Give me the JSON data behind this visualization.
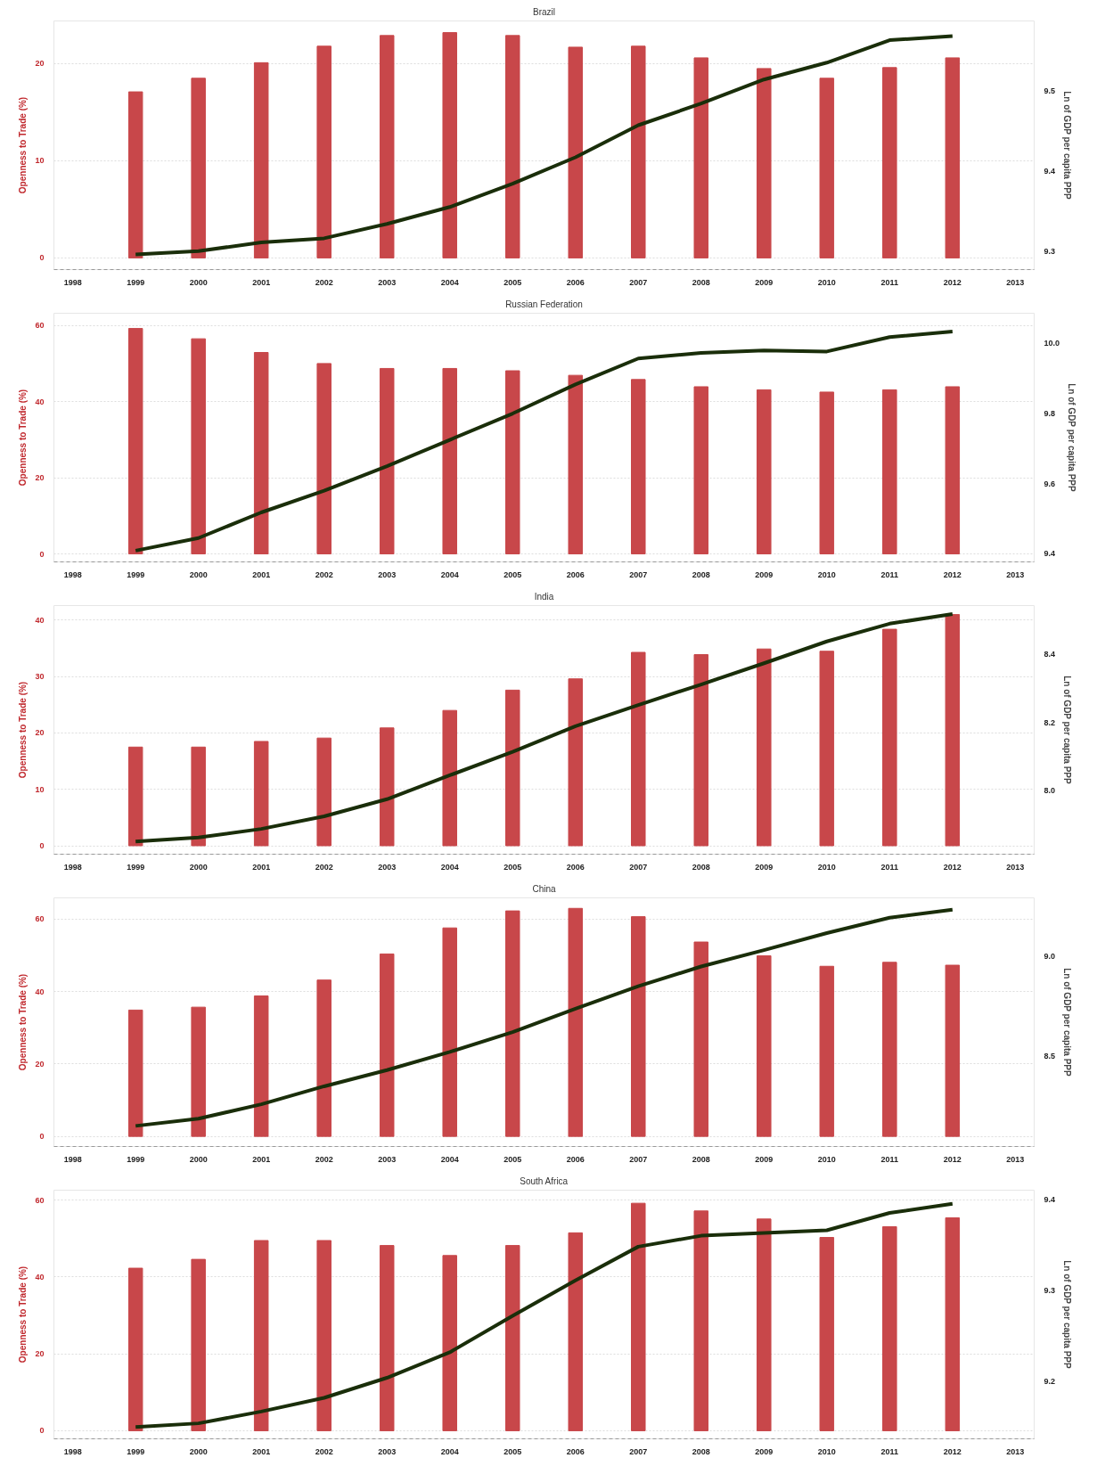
{
  "chart_data": [
    {
      "type": "bar",
      "title": "Brazil",
      "ylabel": "Openness to Trade (%)",
      "y2label": "Ln of GDP per capita PPP",
      "x": [
        1999,
        2000,
        2001,
        2002,
        2003,
        2004,
        2005,
        2006,
        2007,
        2008,
        2009,
        2010,
        2011,
        2012
      ],
      "xlim": [
        1997.7,
        2013.3
      ],
      "xticks": [
        1998,
        1999,
        2000,
        2001,
        2002,
        2003,
        2004,
        2005,
        2006,
        2007,
        2008,
        2009,
        2010,
        2011,
        2012,
        2013
      ],
      "ylim": [
        -1.2,
        24.4
      ],
      "yticks": [
        0,
        10,
        20
      ],
      "y2lim": [
        9.277,
        9.587
      ],
      "y2ticks": [
        9.3,
        9.4,
        9.5
      ],
      "grid": "y",
      "series": [
        {
          "color": "#c8474a",
          "values": [
            17.1,
            18.5,
            20.1,
            21.8,
            22.9,
            23.2,
            22.9,
            21.7,
            21.8,
            20.6,
            19.5,
            18.5,
            19.6,
            20.6
          ]
        },
        {
          "type": "line",
          "axis": "y2",
          "color": "#1a2e0a",
          "values": [
            9.296,
            9.3,
            9.311,
            9.316,
            9.334,
            9.355,
            9.384,
            9.417,
            9.457,
            9.484,
            9.514,
            9.535,
            9.563,
            9.568
          ]
        }
      ]
    },
    {
      "type": "bar",
      "title": "Russian Federation",
      "ylabel": "Openness to Trade (%)",
      "y2label": "Ln of GDP per capita PPP",
      "x": [
        1999,
        2000,
        2001,
        2002,
        2003,
        2004,
        2005,
        2006,
        2007,
        2008,
        2009,
        2010,
        2011,
        2012
      ],
      "xlim": [
        1997.7,
        2013.3
      ],
      "xticks": [
        1998,
        1999,
        2000,
        2001,
        2002,
        2003,
        2004,
        2005,
        2006,
        2007,
        2008,
        2009,
        2010,
        2011,
        2012,
        2013
      ],
      "ylim": [
        -2.1,
        63.2
      ],
      "yticks": [
        0,
        20,
        40,
        60
      ],
      "y2lim": [
        9.377,
        10.086
      ],
      "y2ticks": [
        {
          "value": 9.4,
          "label": "9.4"
        },
        {
          "value": 9.6,
          "label": "9.6"
        },
        {
          "value": 9.8,
          "label": "9.8"
        },
        {
          "value": 10.0,
          "label": "10.0"
        }
      ],
      "grid": "y",
      "series": [
        {
          "color": "#c8474a",
          "values": [
            59.2,
            56.5,
            52.9,
            50.0,
            48.7,
            48.7,
            48.1,
            46.9,
            45.8,
            43.9,
            43.1,
            42.5,
            43.1,
            43.9
          ]
        },
        {
          "type": "line",
          "axis": "y2",
          "color": "#1a2e0a",
          "values": [
            9.409,
            9.445,
            9.518,
            9.58,
            9.65,
            9.725,
            9.8,
            9.883,
            9.957,
            9.973,
            9.98,
            9.977,
            10.018,
            10.034
          ]
        }
      ]
    },
    {
      "type": "bar",
      "title": "India",
      "ylabel": "Openness to Trade (%)",
      "y2label": "Ln of GDP per capita PPP",
      "x": [
        1999,
        2000,
        2001,
        2002,
        2003,
        2004,
        2005,
        2006,
        2007,
        2008,
        2009,
        2010,
        2011,
        2012
      ],
      "xlim": [
        1997.7,
        2013.3
      ],
      "xticks": [
        1998,
        1999,
        2000,
        2001,
        2002,
        2003,
        2004,
        2005,
        2006,
        2007,
        2008,
        2009,
        2010,
        2011,
        2012,
        2013
      ],
      "ylim": [
        -1.5,
        42.6
      ],
      "yticks": [
        0,
        10,
        20,
        30,
        40
      ],
      "y2lim": [
        7.814,
        8.542
      ],
      "y2ticks": [
        {
          "value": 8.0,
          "label": "8.0"
        },
        8.2,
        8.4
      ],
      "grid": "y",
      "series": [
        {
          "color": "#c8474a",
          "values": [
            17.5,
            17.5,
            18.5,
            19.1,
            20.9,
            24.0,
            27.6,
            29.6,
            34.3,
            33.9,
            34.9,
            34.5,
            38.4,
            41.0
          ]
        },
        {
          "type": "line",
          "axis": "y2",
          "color": "#1a2e0a",
          "values": [
            7.851,
            7.863,
            7.888,
            7.925,
            7.975,
            8.045,
            8.114,
            8.189,
            8.251,
            8.311,
            8.373,
            8.437,
            8.489,
            8.517
          ]
        }
      ]
    },
    {
      "type": "bar",
      "title": "China",
      "ylabel": "Openness to Trade (%)",
      "y2label": "Ln of GDP per capita PPP",
      "x": [
        1999,
        2000,
        2001,
        2002,
        2003,
        2004,
        2005,
        2006,
        2007,
        2008,
        2009,
        2010,
        2011,
        2012
      ],
      "xlim": [
        1997.7,
        2013.3
      ],
      "xticks": [
        1998,
        1999,
        2000,
        2001,
        2002,
        2003,
        2004,
        2005,
        2006,
        2007,
        2008,
        2009,
        2010,
        2011,
        2012,
        2013
      ],
      "ylim": [
        -2.8,
        65.9
      ],
      "yticks": [
        0,
        20,
        40,
        60
      ],
      "y2lim": [
        8.05,
        9.293
      ],
      "y2ticks": [
        8.5,
        {
          "value": 9.0,
          "label": "9.0"
        }
      ],
      "grid": "y",
      "series": [
        {
          "color": "#c8474a",
          "values": [
            34.9,
            35.7,
            38.8,
            43.2,
            50.4,
            57.6,
            62.3,
            63.0,
            60.7,
            53.7,
            49.9,
            47.0,
            48.1,
            47.3
          ]
        },
        {
          "type": "line",
          "axis": "y2",
          "color": "#1a2e0a",
          "values": [
            8.153,
            8.189,
            8.261,
            8.351,
            8.432,
            8.523,
            8.622,
            8.739,
            8.851,
            8.95,
            9.032,
            9.117,
            9.194,
            9.234
          ]
        }
      ]
    },
    {
      "type": "bar",
      "title": "South Africa",
      "ylabel": "Openness to Trade (%)",
      "y2label": "Ln of GDP per capita PPP",
      "x": [
        1999,
        2000,
        2001,
        2002,
        2003,
        2004,
        2005,
        2006,
        2007,
        2008,
        2009,
        2010,
        2011,
        2012
      ],
      "xlim": [
        1997.7,
        2013.3
      ],
      "xticks": [
        1998,
        1999,
        2000,
        2001,
        2002,
        2003,
        2004,
        2005,
        2006,
        2007,
        2008,
        2009,
        2010,
        2011,
        2012,
        2013
      ],
      "ylim": [
        -2.1,
        62.6
      ],
      "yticks": [
        0,
        20,
        40,
        60
      ],
      "y2lim": [
        9.137,
        9.41
      ],
      "y2ticks": [
        9.2,
        9.3,
        9.4
      ],
      "grid": "y",
      "series": [
        {
          "color": "#c8474a",
          "values": [
            42.3,
            44.6,
            49.5,
            49.5,
            48.2,
            45.6,
            48.2,
            51.5,
            59.2,
            57.2,
            55.1,
            50.3,
            53.1,
            55.4
          ]
        },
        {
          "type": "line",
          "axis": "y2",
          "color": "#1a2e0a",
          "values": [
            9.15,
            9.154,
            9.167,
            9.182,
            9.204,
            9.232,
            9.272,
            9.311,
            9.348,
            9.36,
            9.363,
            9.366,
            9.385,
            9.395
          ]
        }
      ]
    }
  ]
}
